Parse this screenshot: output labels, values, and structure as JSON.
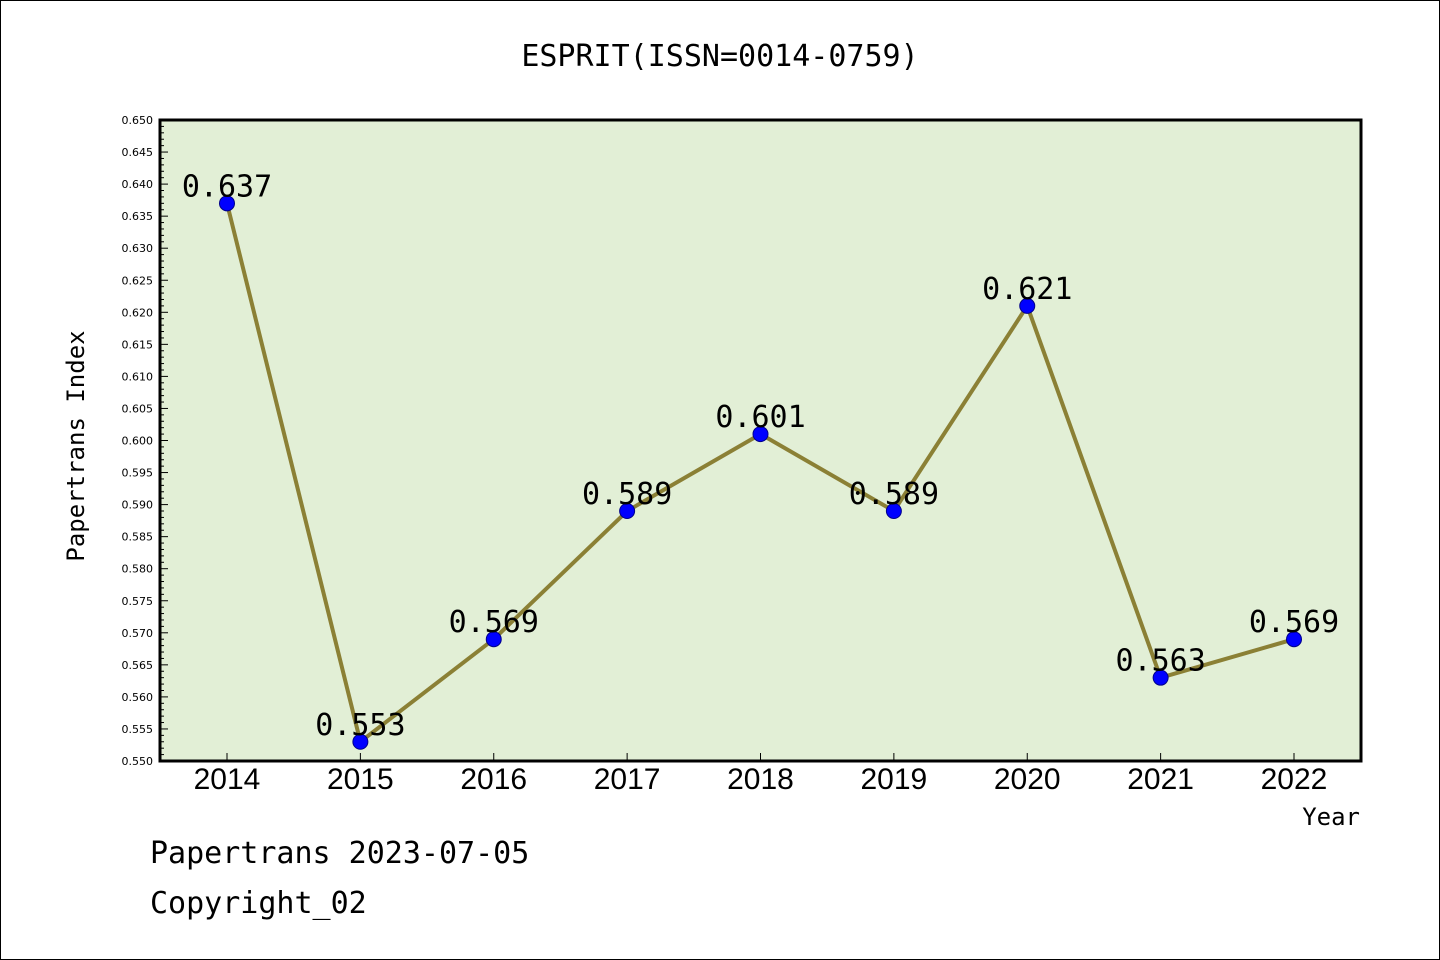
{
  "chart_data": {
    "type": "line",
    "title": "ESPRIT(ISSN=0014-0759)",
    "xlabel": "Year",
    "ylabel": "Papertrans Index",
    "categories": [
      "2014",
      "2015",
      "2016",
      "2017",
      "2018",
      "2019",
      "2020",
      "2021",
      "2022"
    ],
    "series": [
      {
        "values": [
          0.637,
          0.553,
          0.569,
          0.589,
          0.601,
          0.589,
          0.621,
          0.563,
          0.569
        ],
        "data_labels": [
          "0.637",
          "0.553",
          "0.569",
          "0.589",
          "0.601",
          "0.589",
          "0.621",
          "0.563",
          "0.569"
        ]
      }
    ],
    "ylim": [
      0.55,
      0.65
    ],
    "ytick_step": 0.005,
    "grid": false,
    "colors": {
      "plot_background": "#e2efd6",
      "line": "#8b8035",
      "marker": "#0000ff",
      "axis": "#000000"
    }
  },
  "footer": {
    "date_line": "Papertrans 2023-07-05",
    "copyright": "Copyright_02"
  }
}
